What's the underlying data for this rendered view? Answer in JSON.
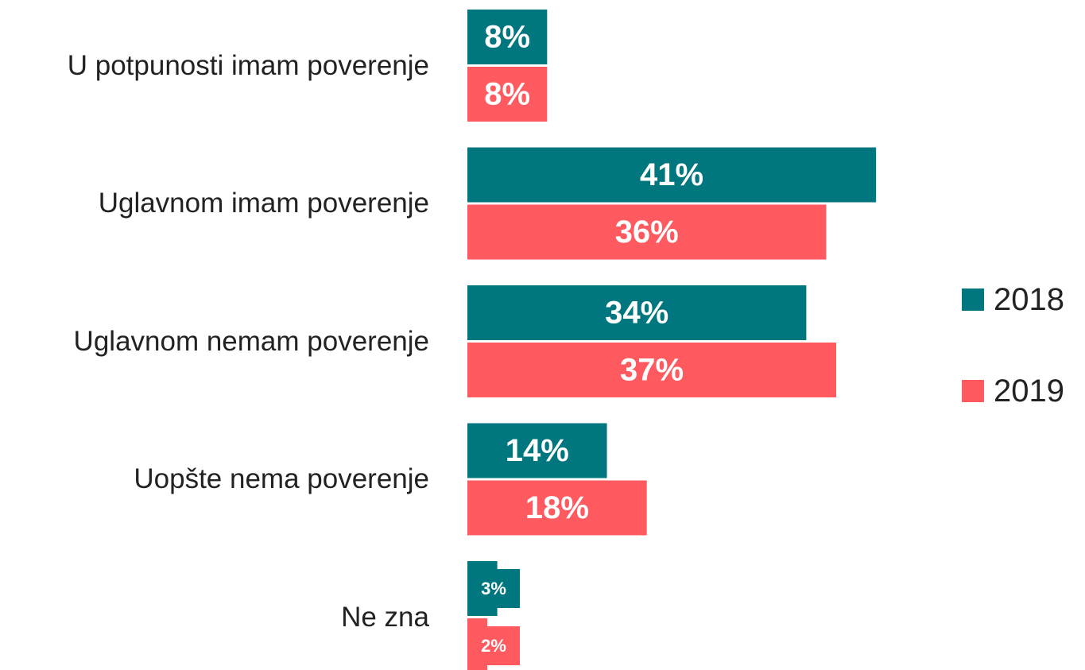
{
  "chart_data": {
    "type": "bar",
    "orientation": "horizontal",
    "categories": [
      "U potpunosti imam poverenje",
      "Uglavnom imam poverenje",
      "Uglavnom nemam poverenje",
      "Uopšte nema poverenje",
      "Ne zna"
    ],
    "series": [
      {
        "name": "2018",
        "color": "#00767f",
        "values": [
          8,
          41,
          34,
          14,
          3
        ],
        "value_labels": [
          "8%",
          "41%",
          "34%",
          "14%",
          "3%"
        ]
      },
      {
        "name": "2019",
        "color": "#ff5a5f",
        "values": [
          8,
          36,
          37,
          18,
          2
        ],
        "value_labels": [
          "8%",
          "36%",
          "37%",
          "18%",
          "2%"
        ]
      }
    ],
    "legend": "right"
  }
}
